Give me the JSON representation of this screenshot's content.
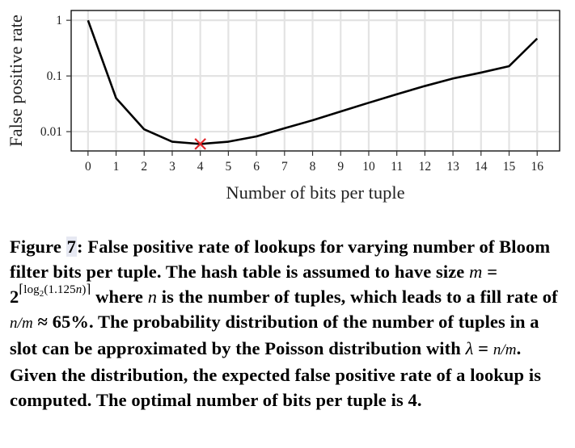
{
  "chart_data": {
    "type": "line",
    "x": [
      0,
      1,
      2,
      3,
      4,
      5,
      6,
      7,
      8,
      9,
      10,
      11,
      12,
      13,
      14,
      15,
      16
    ],
    "series": [
      {
        "values": [
          1,
          0.04,
          0.011,
          0.0066,
          0.006,
          0.0066,
          0.0082,
          0.0115,
          0.016,
          0.023,
          0.033,
          0.047,
          0.066,
          0.09,
          0.115,
          0.15,
          0.47
        ]
      }
    ],
    "marker": {
      "x": 4,
      "y": 0.006,
      "symbol": "x",
      "color": "#e3262a"
    },
    "xlabel": "Number of bits per tuple",
    "ylabel": "False positive rate",
    "x_ticks": [
      "0",
      "1",
      "2",
      "3",
      "4",
      "5",
      "6",
      "7",
      "8",
      "9",
      "10",
      "11",
      "12",
      "13",
      "14",
      "15",
      "16"
    ],
    "y_ticks": [
      "1",
      "0.1",
      "0.01"
    ],
    "y_scale": "log",
    "ylim": [
      0.0045,
      1.5
    ],
    "xlim": [
      -0.6,
      16.8
    ],
    "grid": true,
    "line_color": "#000000",
    "grid_color": "#e3e3e3"
  },
  "caption": {
    "fig_label": "Figure",
    "fig_number": "7",
    "part1": ": False positive rate of lookups for varying number of Bloom filter bits per tuple. The hash table is assumed to have size ",
    "m": "m",
    "eq_size": " = 2",
    "exp_open": "⌈log",
    "exp_sub": "2",
    "exp_arg": "(1.125",
    "exp_n": "n",
    "exp_close": ")⌉",
    "part2": " where ",
    "n": "n",
    "part3": " is the number of tuples, which leads to a fill rate of ",
    "fill_frac": "n/m",
    "part4": " ≈ 65%. The probability distribution of the number of tuples in a slot can be approximated by the Poisson distribution with ",
    "lambda": "λ",
    "eq": " = ",
    "lambda_frac": "n/m",
    "part5": ". Given the distribution, the expected false positive rate of a lookup is computed. The optimal number of bits per tuple is 4."
  }
}
